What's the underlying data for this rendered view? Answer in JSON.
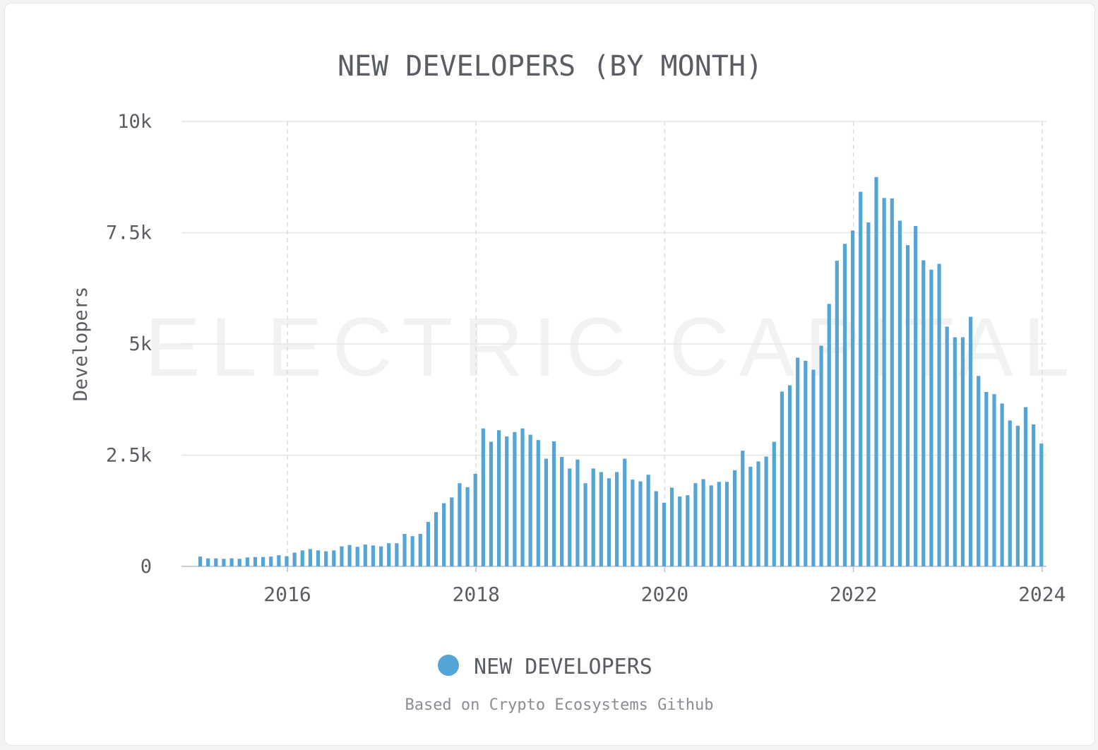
{
  "chart_data": {
    "type": "bar",
    "title": "NEW DEVELOPERS (BY MONTH)",
    "xlabel": "",
    "ylabel": "Developers",
    "ylim": [
      0,
      10000
    ],
    "y_ticks": [
      "0",
      "2.5k",
      "5k",
      "7.5k",
      "10k"
    ],
    "x_ticks": [
      "2016",
      "2018",
      "2020",
      "2022",
      "2024"
    ],
    "x_start": "2015-01",
    "series": [
      {
        "name": "NEW DEVELOPERS",
        "color": "#52a5d6",
        "values": [
          220,
          180,
          180,
          170,
          180,
          170,
          200,
          210,
          210,
          220,
          250,
          230,
          310,
          360,
          390,
          360,
          340,
          360,
          450,
          480,
          440,
          490,
          470,
          450,
          520,
          520,
          730,
          680,
          730,
          1000,
          1220,
          1420,
          1550,
          1870,
          1780,
          2080,
          3100,
          2800,
          3060,
          2920,
          3020,
          3100,
          2960,
          2840,
          2420,
          2810,
          2460,
          2200,
          2400,
          1870,
          2200,
          2120,
          1980,
          2120,
          2420,
          1950,
          1910,
          2060,
          1690,
          1430,
          1770,
          1570,
          1600,
          1870,
          1960,
          1820,
          1900,
          1900,
          2160,
          2600,
          2240,
          2360,
          2470,
          2800,
          3930,
          4070,
          4690,
          4620,
          4420,
          4960,
          5900,
          6870,
          7250,
          7550,
          8420,
          7730,
          8750,
          8280,
          8270,
          7770,
          7220,
          7650,
          6880,
          6670,
          6800,
          5390,
          5150,
          5150,
          5610,
          4280,
          3920,
          3870,
          3660,
          3280,
          3160,
          3580,
          3190,
          2760
        ]
      }
    ],
    "legend": {
      "position": "bottom-center",
      "label": "NEW DEVELOPERS"
    },
    "watermark": "ELECTRIC CAPITAL",
    "footnote": "Based on Crypto Ecosystems Github",
    "grid": true
  }
}
